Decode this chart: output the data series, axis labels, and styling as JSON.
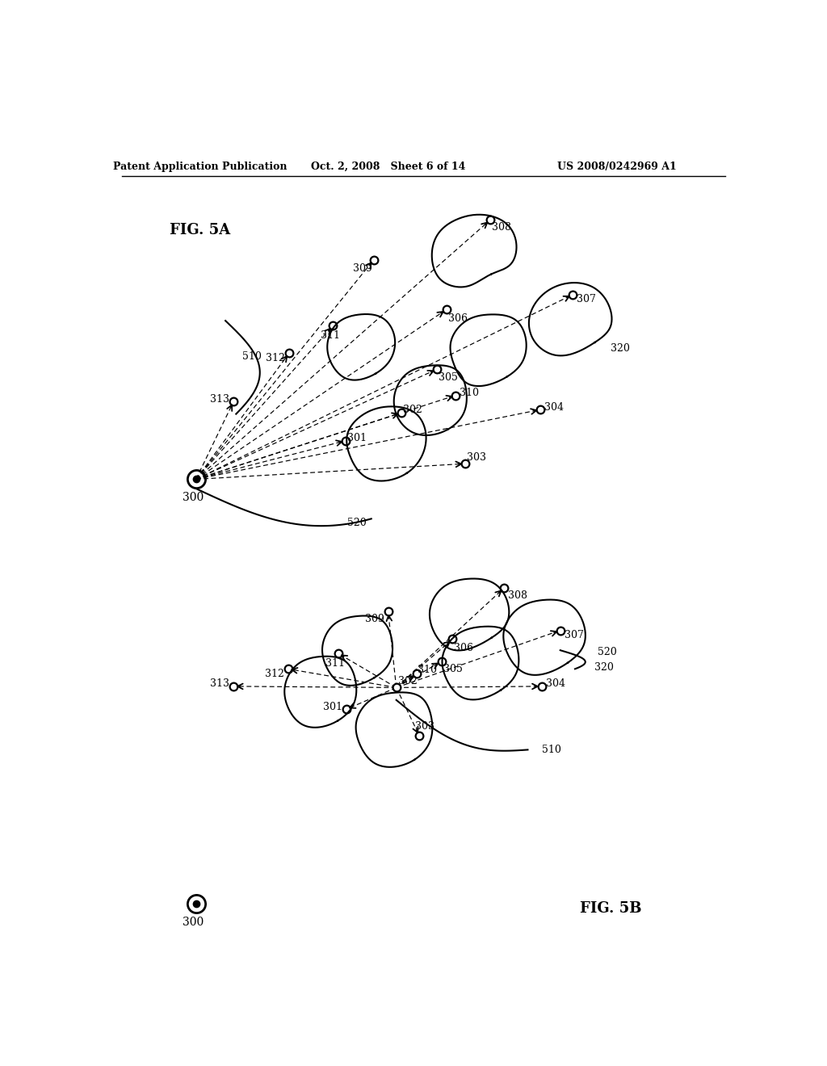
{
  "header_left": "Patent Application Publication",
  "header_mid": "Oct. 2, 2008   Sheet 6 of 14",
  "header_right": "US 2008/0242969 A1",
  "fig5a_label": "FIG. 5A",
  "fig5b_label": "FIG. 5B",
  "background_color": "#ffffff"
}
